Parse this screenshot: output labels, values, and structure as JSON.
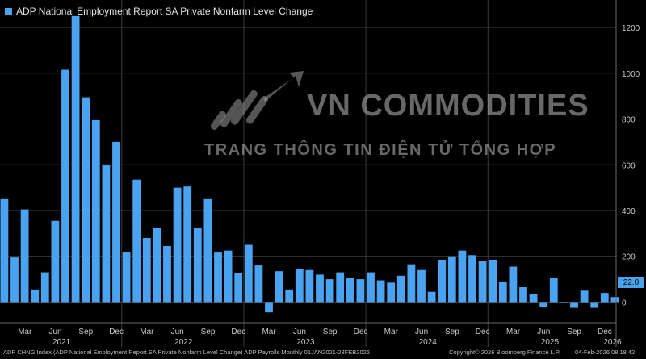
{
  "legend": {
    "label": "ADP National Employment Report SA Private Nonfarm Level Change"
  },
  "watermark": {
    "title": "VN COMMODITIES",
    "subtitle": "TRANG THÔNG TIN ĐIỆN TỬ TỔNG HỢP"
  },
  "footer": {
    "source": "ADP CHNG Index (ADP National Employment Report SA Private Nonfarm Level Change) ADP Payrolls Monthly 01JAN2021-28FEB2026",
    "copyright": "Copyright© 2026 Bloomberg Finance L.P.",
    "timestamp": "04-Feb-2026 08:18:42"
  },
  "colors": {
    "bar": "#4aa3f0",
    "background": "#000000",
    "grid": "#3a3a3a"
  },
  "chart_data": {
    "type": "bar",
    "title": "",
    "series": [
      {
        "name": "ADP National Employment Report SA Private Nonfarm Level Change",
        "values": [
          450,
          195,
          405,
          55,
          130,
          355,
          1015,
          1250,
          895,
          795,
          600,
          700,
          220,
          535,
          280,
          325,
          245,
          500,
          505,
          325,
          450,
          220,
          225,
          125,
          250,
          160,
          -45,
          135,
          55,
          145,
          140,
          120,
          100,
          130,
          105,
          100,
          130,
          95,
          85,
          115,
          165,
          140,
          45,
          185,
          200,
          225,
          205,
          180,
          185,
          90,
          155,
          65,
          35,
          -20,
          105,
          0,
          -25,
          50,
          -25,
          40,
          22
        ]
      }
    ],
    "x_start": "2021-01",
    "y_ticks": [
      0,
      200,
      400,
      600,
      800,
      1000,
      1200
    ],
    "ylim": [
      -90,
      1320
    ],
    "last_value_label": "22.0",
    "month_labels": [
      {
        "label": "Mar",
        "index": 2
      },
      {
        "label": "Jun",
        "index": 5
      },
      {
        "label": "Sep",
        "index": 8
      },
      {
        "label": "Dec",
        "index": 11
      },
      {
        "label": "Mar",
        "index": 14
      },
      {
        "label": "Jun",
        "index": 17
      },
      {
        "label": "Sep",
        "index": 20
      },
      {
        "label": "Dec",
        "index": 23
      },
      {
        "label": "Mar",
        "index": 26
      },
      {
        "label": "Jun",
        "index": 29
      },
      {
        "label": "Sep",
        "index": 32
      },
      {
        "label": "Dec",
        "index": 35
      },
      {
        "label": "Mar",
        "index": 38
      },
      {
        "label": "Jun",
        "index": 41
      },
      {
        "label": "Sep",
        "index": 44
      },
      {
        "label": "Dec",
        "index": 47
      },
      {
        "label": "Mar",
        "index": 50
      },
      {
        "label": "Jun",
        "index": 53
      },
      {
        "label": "Sep",
        "index": 56
      },
      {
        "label": "Dec",
        "index": 59
      }
    ],
    "year_labels": [
      {
        "label": "2021",
        "index": 6
      },
      {
        "label": "2022",
        "index": 18
      },
      {
        "label": "2023",
        "index": 30
      },
      {
        "label": "2024",
        "index": 42
      },
      {
        "label": "2025",
        "index": 54
      },
      {
        "label": "2026",
        "index": 60
      }
    ],
    "grid": true,
    "legend_position": "top-left"
  }
}
